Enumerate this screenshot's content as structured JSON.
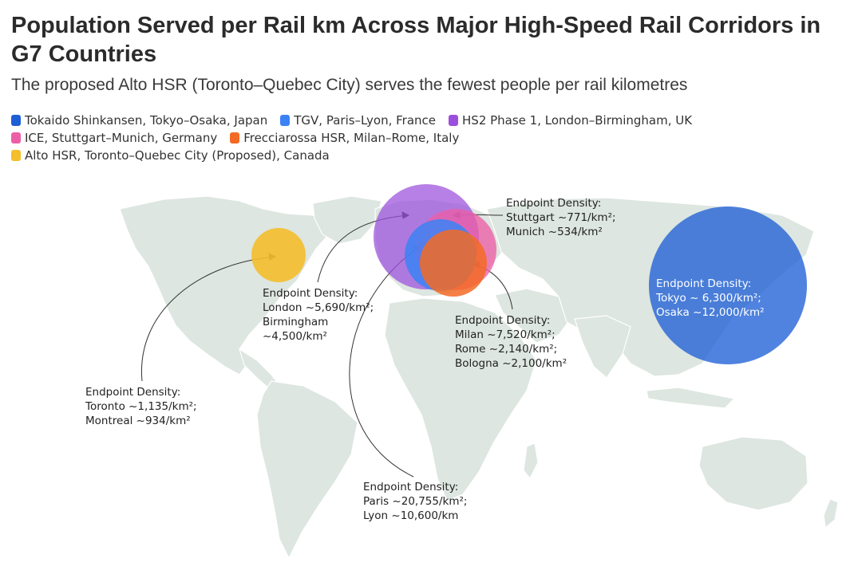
{
  "title": "Population Served per Rail km Across Major High-Speed Rail Corridors in G7 Countries",
  "subtitle": "The proposed Alto HSR (Toronto–Quebec City) serves the fewest people per rail kilometres",
  "legend": [
    {
      "label": "Tokaido Shinkansen, Tokyo–Osaka, Japan",
      "color": "#1f5fd6"
    },
    {
      "label": "TGV, Paris–Lyon, France",
      "color": "#3b82f6"
    },
    {
      "label": "HS2 Phase 1, London–Birmingham, UK",
      "color": "#9b4fdc"
    },
    {
      "label": "ICE, Stuttgart–Munich, Germany",
      "color": "#ec5fa6"
    },
    {
      "label": "Frecciarossa HSR, Milan–Rome, Italy",
      "color": "#f36a25"
    },
    {
      "label": "Alto HSR, Toronto–Quebec City (Proposed), Canada",
      "color": "#f4be2c"
    }
  ],
  "annotations": {
    "alto": {
      "heading": "Endpoint Density:",
      "line1": "Toronto ~1,135/km²;",
      "line2": "Montreal ~934/km²"
    },
    "hs2": {
      "heading": "Endpoint Density:",
      "line1": "London ~5,690/km²;",
      "line2": "Birmingham",
      "line3": "~4,500/km²"
    },
    "ice": {
      "heading": "Endpoint Density:",
      "line1": "Stuttgart ~771/km²;",
      "line2": "Munich ~534/km²"
    },
    "frecciarossa": {
      "heading": "Endpoint Density:",
      "line1": "Milan ~7,520/km²;",
      "line2": "Rome ~2,140/km²;",
      "line3": "Bologna ~2,100/km²"
    },
    "tgv": {
      "heading": "Endpoint Density:",
      "line1": "Paris ~20,755/km²;",
      "line2": "Lyon ~10,600/km"
    },
    "tokaido": {
      "heading": "Endpoint Density:",
      "line1": "Tokyo ~ 6,300/km²;",
      "line2": "Osaka ~12,000/km²"
    }
  },
  "colors": {
    "land": "#dde6e0",
    "land_edge": "#ffffff",
    "tokaido": "#1f5fd6",
    "tgv": "#3b82f6",
    "hs2": "#9b4fdc",
    "ice": "#ec5fa6",
    "frecciarossa": "#f36a25",
    "alto": "#f4be2c"
  }
}
